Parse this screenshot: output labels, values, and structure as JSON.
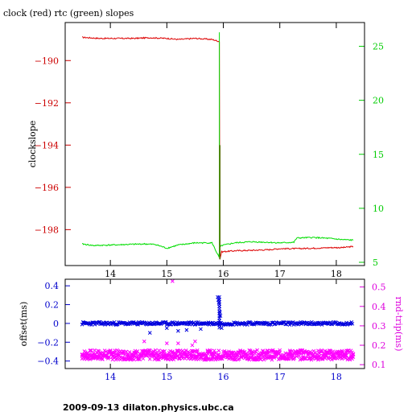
{
  "header": {
    "title": "clock (red) rtc (green) slopes"
  },
  "footer": {
    "text": "2009-09-13  dilaton.physics.ubc.ca"
  },
  "chart_data": [
    {
      "type": "line",
      "ylabel": "clockslope",
      "xlim": [
        13.2,
        18.5
      ],
      "ylim": [
        -199.7,
        -188.2
      ],
      "y2lim": [
        4.7,
        27.2
      ],
      "xticks": [
        14,
        15,
        16,
        17,
        18
      ],
      "yticks_left": [
        -190,
        -192,
        -194,
        -196,
        -198
      ],
      "yticks_right": [
        5,
        10,
        15,
        20,
        25
      ],
      "colors": {
        "clock": "#dd0000",
        "rtc": "#00dd00",
        "axis_left": "#cc0000",
        "axis_right": "#00cc00",
        "frame": "#000000"
      },
      "series": [
        {
          "name": "clock (red)",
          "axis": "left",
          "x": [
            13.5,
            13.8,
            14.1,
            14.4,
            14.7,
            15.0,
            15.2,
            15.5,
            15.8,
            15.93,
            15.94,
            15.97,
            16.2,
            16.5,
            16.8,
            17.0,
            17.3,
            17.6,
            17.9,
            18.1,
            18.3
          ],
          "y": [
            -188.9,
            -188.95,
            -188.95,
            -188.95,
            -188.92,
            -188.95,
            -189.0,
            -188.95,
            -189.0,
            -189.1,
            -199.4,
            -199.05,
            -199.0,
            -198.98,
            -198.95,
            -198.9,
            -198.9,
            -198.88,
            -198.85,
            -198.85,
            -198.8
          ]
        },
        {
          "name": "rtc (green)",
          "axis": "right",
          "x": [
            13.5,
            13.7,
            14.0,
            14.3,
            14.6,
            14.8,
            15.0,
            15.2,
            15.5,
            15.8,
            15.92,
            15.94,
            15.97,
            16.2,
            16.5,
            16.8,
            17.0,
            17.25,
            17.3,
            17.6,
            17.9,
            18.1,
            18.3
          ],
          "y": [
            6.7,
            6.55,
            6.6,
            6.65,
            6.7,
            6.65,
            6.3,
            6.6,
            6.8,
            6.8,
            5.5,
            6.4,
            6.55,
            6.8,
            6.9,
            6.85,
            6.8,
            6.85,
            7.25,
            7.3,
            7.2,
            7.1,
            7.05
          ]
        }
      ],
      "spike": {
        "x": 15.93,
        "y2": 26.3
      }
    },
    {
      "type": "scatter",
      "ylabel": "offset(ms)",
      "y2label": "rnd-trip(ms)",
      "xlim": [
        13.2,
        18.5
      ],
      "ylim": [
        -0.48,
        0.47
      ],
      "y2lim": [
        0.08,
        0.54
      ],
      "xticks": [
        14,
        15,
        16,
        17,
        18
      ],
      "yticks_left": [
        0.4,
        0.2,
        0,
        -0.2,
        -0.4
      ],
      "yticks_left_labels": [
        "0.4",
        "0.2",
        "0",
        "−0.2",
        "−0.4"
      ],
      "yticks_right": [
        0.5,
        0.4,
        0.3,
        0.2,
        0.1
      ],
      "colors": {
        "offset": "#0000dd",
        "roundtrip": "#ff00ff",
        "axis_left": "#0000cc",
        "axis_right": "#dd00dd",
        "frame": "#000000"
      },
      "series": [
        {
          "name": "offset",
          "axis": "left",
          "x": [
            13.5,
            14.7,
            15.0,
            15.2,
            15.35,
            15.6,
            15.9,
            15.91,
            15.92,
            15.93,
            15.94,
            15.95,
            15.97,
            16.3,
            16.8,
            17.5,
            18.3
          ],
          "y": [
            0,
            -0.1,
            -0.05,
            -0.08,
            -0.07,
            -0.06,
            0.28,
            0.25,
            0.22,
            0.18,
            0.12,
            0.08,
            -0.05,
            0,
            0,
            0,
            0
          ]
        },
        {
          "name": "rnd-trip",
          "axis": "right",
          "x": [
            13.5,
            14.0,
            14.5,
            15.0,
            15.1,
            15.4,
            15.9,
            16.0,
            16.5,
            17.0,
            17.5,
            18.0,
            18.3
          ],
          "y": [
            0.15,
            0.16,
            0.15,
            0.155,
            0.53,
            0.15,
            0.16,
            0.14,
            0.15,
            0.145,
            0.15,
            0.145,
            0.15
          ]
        }
      ]
    }
  ]
}
